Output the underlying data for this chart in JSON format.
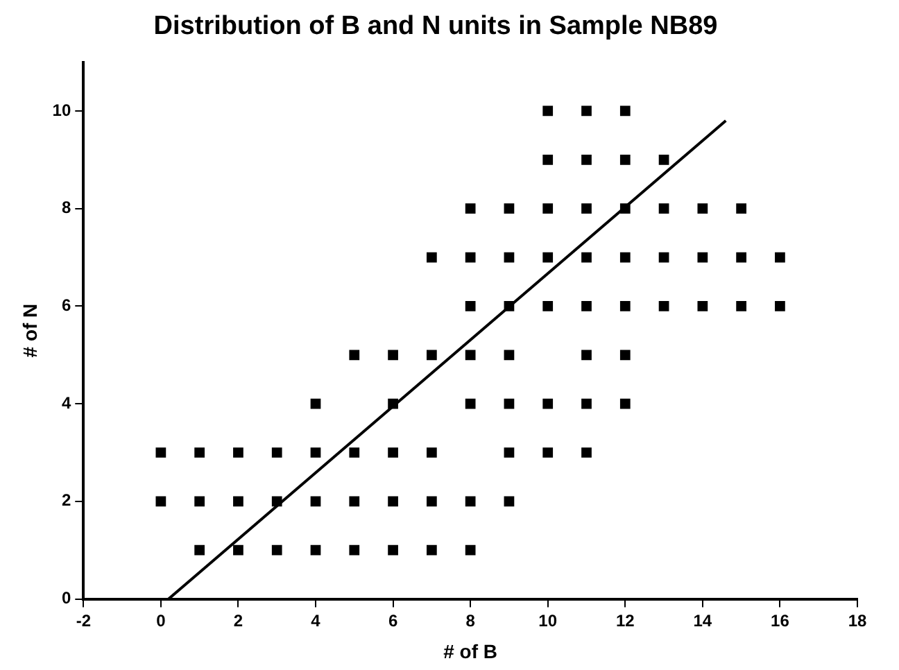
{
  "chart_data": {
    "type": "scatter",
    "title": "Distribution of B and N units in Sample NB89",
    "xlabel": "# of B",
    "ylabel": "# of N",
    "xlim": [
      -2,
      18
    ],
    "xticks": [
      -2,
      0,
      2,
      4,
      6,
      8,
      10,
      12,
      14,
      16,
      18
    ],
    "ylim": [
      0,
      11
    ],
    "yticks": [
      0,
      2,
      4,
      6,
      8,
      10
    ],
    "grid": false,
    "legend": false,
    "series": [
      {
        "marker": "square",
        "color": "#000000",
        "x": [
          1,
          2,
          3,
          4,
          5,
          6,
          7,
          8,
          0,
          1,
          2,
          3,
          4,
          5,
          6,
          7,
          8,
          9,
          0,
          1,
          2,
          3,
          4,
          5,
          6,
          7,
          9,
          10,
          11,
          4,
          6,
          8,
          9,
          10,
          11,
          12,
          5,
          6,
          7,
          8,
          9,
          11,
          12,
          8,
          9,
          10,
          11,
          12,
          13,
          14,
          15,
          16,
          7,
          8,
          9,
          10,
          11,
          12,
          13,
          14,
          15,
          16,
          8,
          9,
          10,
          11,
          12,
          13,
          14,
          15,
          10,
          11,
          12,
          13,
          10,
          11,
          12
        ],
        "values": [
          1,
          1,
          1,
          1,
          1,
          1,
          1,
          1,
          2,
          2,
          2,
          2,
          2,
          2,
          2,
          2,
          2,
          2,
          3,
          3,
          3,
          3,
          3,
          3,
          3,
          3,
          3,
          3,
          3,
          4,
          4,
          4,
          4,
          4,
          4,
          4,
          5,
          5,
          5,
          5,
          5,
          5,
          5,
          6,
          6,
          6,
          6,
          6,
          6,
          6,
          6,
          6,
          7,
          7,
          7,
          7,
          7,
          7,
          7,
          7,
          7,
          7,
          8,
          8,
          8,
          8,
          8,
          8,
          8,
          8,
          9,
          9,
          9,
          9,
          10,
          10,
          10
        ]
      },
      {
        "type": "line",
        "marker": "none",
        "color": "#000000",
        "x": [
          0.2,
          14.6
        ],
        "values": [
          0,
          9.8
        ]
      }
    ]
  }
}
